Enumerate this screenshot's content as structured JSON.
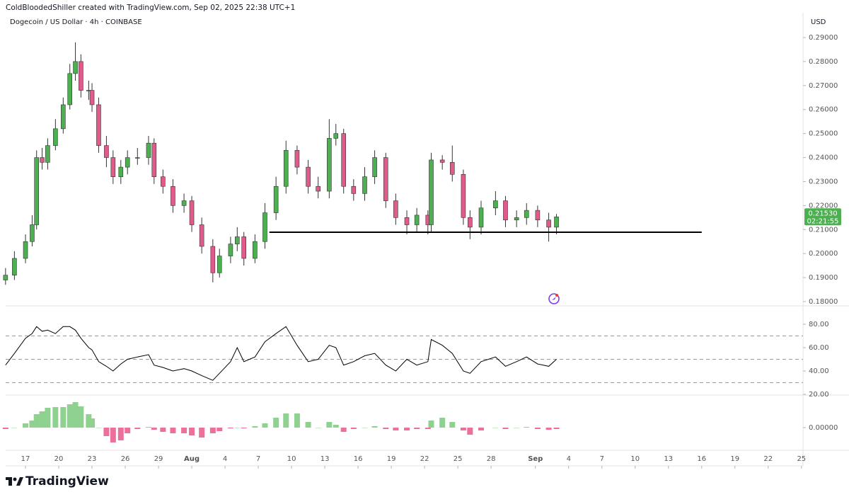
{
  "header": "ColdBloodedShiller created with TradingView.com, Sep 02, 2025 22:38 UTC+1",
  "footer": "TradingView",
  "chart_data": [
    {
      "type": "candlestick",
      "title": "Dogecoin / US Dollar · 4h · COINBASE",
      "currency": "USD",
      "last_price_label": "0.21530",
      "countdown": "02:21:55",
      "up_color": "#4caf50",
      "down_color": "#e05a8c",
      "wick_color": "#333333",
      "label_color": "#4caf50",
      "xlim": [
        -1.79,
        70.14
      ],
      "ylim": [
        0.17823,
        0.30032
      ],
      "yticks": [
        {
          "value": 0.18,
          "label": "0.18000"
        },
        {
          "value": 0.19,
          "label": "0.19000"
        },
        {
          "value": 0.2,
          "label": "0.20000"
        },
        {
          "value": 0.21,
          "label": "0.21000"
        },
        {
          "value": 0.22,
          "label": "0.22000"
        },
        {
          "value": 0.23,
          "label": "0.23000"
        },
        {
          "value": 0.24,
          "label": "0.24000"
        },
        {
          "value": 0.25,
          "label": "0.25000"
        },
        {
          "value": 0.26,
          "label": "0.26000"
        },
        {
          "value": 0.27,
          "label": "0.27000"
        },
        {
          "value": 0.28,
          "label": "0.28000"
        },
        {
          "value": 0.29,
          "label": "0.29000"
        }
      ],
      "x": [
        -1.8,
        -1,
        0,
        0.6,
        1,
        1.5,
        2,
        2.7,
        3.4,
        4,
        4.5,
        5,
        5.7,
        6,
        6.6,
        7.3,
        7.9,
        8.6,
        9.2,
        10.1,
        11.1,
        11.6,
        12.4,
        13.3,
        14.3,
        15,
        15.9,
        16.9,
        17.5,
        18.5,
        19.1,
        19.7,
        20.7,
        21.6,
        22.6,
        23.5,
        24.5,
        25.5,
        26.4,
        27.4,
        28,
        28.7,
        29.6,
        30.6,
        31.5,
        32.5,
        33.4,
        34.4,
        35.3,
        36.3,
        36.6,
        37.6,
        38.5,
        39.5,
        40.1,
        41.1,
        42.4,
        43.3,
        44.3,
        45.2,
        46.2,
        47.2,
        47.9
      ],
      "open": [
        0.189,
        0.191,
        0.198,
        0.205,
        0.212,
        0.24,
        0.238,
        0.245,
        0.252,
        0.262,
        0.275,
        0.28,
        0.268,
        0.268,
        0.262,
        0.245,
        0.24,
        0.232,
        0.236,
        0.24,
        0.24,
        0.246,
        0.232,
        0.228,
        0.22,
        0.222,
        0.212,
        0.203,
        0.192,
        0.199,
        0.204,
        0.207,
        0.198,
        0.205,
        0.217,
        0.228,
        0.243,
        0.236,
        0.228,
        0.226,
        0.248,
        0.25,
        0.228,
        0.225,
        0.232,
        0.24,
        0.222,
        0.215,
        0.212,
        0.216,
        0.212,
        0.239,
        0.238,
        0.233,
        0.215,
        0.211,
        0.219,
        0.222,
        0.214,
        0.215,
        0.218,
        0.214,
        0.211
      ],
      "high": [
        0.194,
        0.201,
        0.208,
        0.216,
        0.243,
        0.244,
        0.248,
        0.256,
        0.265,
        0.279,
        0.288,
        0.283,
        0.272,
        0.271,
        0.265,
        0.249,
        0.243,
        0.239,
        0.243,
        0.244,
        0.249,
        0.248,
        0.235,
        0.231,
        0.225,
        0.224,
        0.215,
        0.206,
        0.202,
        0.207,
        0.211,
        0.209,
        0.208,
        0.221,
        0.232,
        0.247,
        0.245,
        0.239,
        0.232,
        0.256,
        0.254,
        0.252,
        0.231,
        0.236,
        0.243,
        0.242,
        0.225,
        0.218,
        0.219,
        0.218,
        0.242,
        0.241,
        0.245,
        0.235,
        0.218,
        0.222,
        0.226,
        0.224,
        0.218,
        0.221,
        0.22,
        0.217,
        0.2165
      ],
      "low": [
        0.187,
        0.189,
        0.196,
        0.203,
        0.21,
        0.235,
        0.235,
        0.243,
        0.25,
        0.26,
        0.272,
        0.265,
        0.264,
        0.259,
        0.242,
        0.236,
        0.229,
        0.229,
        0.233,
        0.237,
        0.237,
        0.229,
        0.225,
        0.217,
        0.217,
        0.209,
        0.2,
        0.188,
        0.19,
        0.196,
        0.201,
        0.195,
        0.196,
        0.202,
        0.214,
        0.225,
        0.233,
        0.225,
        0.223,
        0.223,
        0.245,
        0.225,
        0.222,
        0.222,
        0.229,
        0.219,
        0.212,
        0.208,
        0.209,
        0.208,
        0.209,
        0.235,
        0.23,
        0.212,
        0.206,
        0.208,
        0.216,
        0.211,
        0.211,
        0.212,
        0.211,
        0.205,
        0.208
      ],
      "close": [
        0.191,
        0.198,
        0.205,
        0.212,
        0.24,
        0.238,
        0.245,
        0.252,
        0.262,
        0.275,
        0.28,
        0.268,
        0.268,
        0.262,
        0.245,
        0.24,
        0.232,
        0.236,
        0.24,
        0.24,
        0.246,
        0.232,
        0.228,
        0.22,
        0.222,
        0.212,
        0.203,
        0.192,
        0.199,
        0.204,
        0.207,
        0.198,
        0.205,
        0.217,
        0.228,
        0.243,
        0.236,
        0.228,
        0.226,
        0.248,
        0.25,
        0.228,
        0.225,
        0.232,
        0.24,
        0.222,
        0.215,
        0.212,
        0.216,
        0.212,
        0.239,
        0.238,
        0.233,
        0.215,
        0.211,
        0.219,
        0.222,
        0.214,
        0.215,
        0.218,
        0.214,
        0.211,
        0.2153
      ],
      "lines": [
        {
          "value": 0.2089,
          "x": [
            22,
            61
          ],
          "color": "#000000"
        }
      ]
    },
    {
      "type": "line",
      "color": "#000000",
      "band_color": "#999999",
      "xlim": [
        -1.79,
        70.14
      ],
      "ylim": [
        19.39,
        95.76
      ],
      "yticks": [
        {
          "value": 80,
          "label": "80.00"
        },
        {
          "value": 60,
          "label": "60.00"
        },
        {
          "value": 40,
          "label": "40.00"
        },
        {
          "value": 20,
          "label": "20.00"
        }
      ],
      "bands": [
        70,
        50,
        30
      ],
      "x": [
        -1.8,
        -1,
        0,
        0.6,
        1,
        1.5,
        2,
        2.7,
        3.4,
        4,
        4.5,
        5,
        5.7,
        6,
        6.6,
        7.3,
        7.9,
        8.6,
        9.2,
        10.1,
        11.1,
        11.6,
        12.4,
        13.3,
        14.3,
        15,
        15.9,
        16.9,
        17.5,
        18.5,
        19.1,
        19.7,
        20.7,
        21.6,
        22.6,
        23.5,
        24.5,
        25.5,
        26.4,
        27.4,
        28,
        28.7,
        29.6,
        30.6,
        31.5,
        32.5,
        33.4,
        34.4,
        35.3,
        36.3,
        36.6,
        37.6,
        38.5,
        39.5,
        40.1,
        41.1,
        42.4,
        43.3,
        44.3,
        45.2,
        46.2,
        47.2,
        47.9
      ],
      "values": [
        45,
        55,
        68,
        72,
        78,
        74,
        75,
        72,
        78,
        78,
        75,
        68,
        60,
        58,
        48,
        44,
        40,
        46,
        50,
        52,
        54,
        45,
        43,
        40,
        42,
        40,
        36,
        32,
        38,
        48,
        60,
        48,
        52,
        65,
        72,
        78,
        62,
        48,
        50,
        62,
        60,
        45,
        48,
        53,
        55,
        45,
        40,
        50,
        45,
        48,
        67,
        62,
        55,
        40,
        38,
        48,
        52,
        44,
        48,
        52,
        46,
        44,
        50
      ]
    },
    {
      "type": "bar",
      "up_color": "#8fd18f",
      "down_color": "#ec6f9c",
      "xlim": [
        -1.79,
        70.14
      ],
      "ylim": [
        -0.0064,
        0.0092
      ],
      "yticks": [
        {
          "value": 0,
          "label": "0.00000"
        }
      ],
      "x": [
        -1.8,
        -1,
        0,
        0.6,
        1,
        1.5,
        2,
        2.7,
        3.4,
        4,
        4.5,
        5,
        5.7,
        6,
        6.6,
        7.3,
        7.9,
        8.6,
        9.2,
        10.1,
        11.1,
        11.6,
        12.4,
        13.3,
        14.3,
        15,
        15.9,
        16.9,
        17.5,
        18.5,
        19.1,
        19.7,
        20.7,
        21.6,
        22.6,
        23.5,
        24.5,
        25.5,
        26.4,
        27.4,
        28,
        28.7,
        29.6,
        30.6,
        31.5,
        32.5,
        33.4,
        34.4,
        35.3,
        36.3,
        36.6,
        37.6,
        38.5,
        39.5,
        40.1,
        41.1,
        42.4,
        43.3,
        44.3,
        45.2,
        46.2,
        47.2,
        47.9
      ],
      "values": [
        -0.0004,
        0,
        0.0012,
        0.002,
        0.0038,
        0.0046,
        0.0056,
        0.0058,
        0.0058,
        0.0066,
        0.0072,
        0.006,
        0.0038,
        0.0026,
        0,
        -0.0024,
        -0.0042,
        -0.0036,
        -0.0016,
        -0.0004,
        0.0002,
        -0.0006,
        -0.0012,
        -0.0016,
        -0.0016,
        -0.0022,
        -0.0028,
        -0.0016,
        -0.001,
        -0.0002,
        0,
        -0.0002,
        0.0004,
        0.0012,
        0.0028,
        0.004,
        0.004,
        0.0016,
        0,
        0.0016,
        0.0008,
        -0.0012,
        -0.0004,
        0,
        0.0004,
        -0.0004,
        -0.0008,
        -0.0008,
        -0.0004,
        -0.0004,
        0.002,
        0.0028,
        0.0016,
        -0.0008,
        -0.002,
        -0.0008,
        0,
        -0.0004,
        0,
        0.0002,
        -0.0004,
        -0.0006,
        -0.0004
      ],
      "xticks": [
        {
          "value": 0,
          "label": "17"
        },
        {
          "value": 3,
          "label": "20"
        },
        {
          "value": 6,
          "label": "23"
        },
        {
          "value": 9,
          "label": "26"
        },
        {
          "value": 12,
          "label": "29"
        },
        {
          "value": 15,
          "label": "Aug"
        },
        {
          "value": 18,
          "label": "4"
        },
        {
          "value": 21,
          "label": "7"
        },
        {
          "value": 24,
          "label": "10"
        },
        {
          "value": 27,
          "label": "13"
        },
        {
          "value": 30,
          "label": "16"
        },
        {
          "value": 33,
          "label": "19"
        },
        {
          "value": 36,
          "label": "22"
        },
        {
          "value": 39,
          "label": "25"
        },
        {
          "value": 42,
          "label": "28"
        },
        {
          "value": 46,
          "label": "Sep"
        },
        {
          "value": 49,
          "label": "4"
        },
        {
          "value": 52,
          "label": "7"
        },
        {
          "value": 55,
          "label": "10"
        },
        {
          "value": 58,
          "label": "13"
        },
        {
          "value": 61,
          "label": "16"
        },
        {
          "value": 64,
          "label": "19"
        },
        {
          "value": 67,
          "label": "22"
        },
        {
          "value": 70,
          "label": "25"
        }
      ]
    }
  ]
}
